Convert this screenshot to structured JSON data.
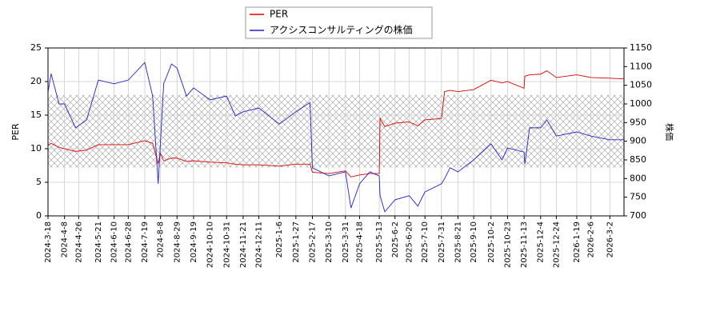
{
  "chart_data": {
    "type": "line",
    "x": [
      "2024-3-18",
      "2024-3-22",
      "2024-4-1",
      "2024-4-8",
      "2024-4-22",
      "2024-5-6",
      "2024-5-21",
      "2024-6-10",
      "2024-6-28",
      "2024-7-19",
      "2024-7-29",
      "2024-8-5",
      "2024-8-8",
      "2024-8-12",
      "2024-8-22",
      "2024-8-29",
      "2024-9-10",
      "2024-9-19",
      "2024-10-10",
      "2024-10-31",
      "2024-11-11",
      "2024-11-21",
      "2024-12-11",
      "2025-1-6",
      "2025-1-27",
      "2025-2-14",
      "2025-2-17",
      "2025-3-10",
      "2025-3-31",
      "2025-4-7",
      "2025-4-18",
      "2025-5-1",
      "2025-5-13",
      "2025-5-14",
      "2025-5-20",
      "2025-6-2",
      "2025-6-20",
      "2025-7-1",
      "2025-7-10",
      "2025-7-31",
      "2025-8-4",
      "2025-8-11",
      "2025-8-21",
      "2025-9-10",
      "2025-10-2",
      "2025-10-16",
      "2025-10-23",
      "2025-11-13",
      "2025-11-14",
      "2025-11-20",
      "2025-12-4",
      "2025-12-12",
      "2025-12-24",
      "2026-1-19",
      "2026-2-6",
      "2026-3-2",
      "2026-3-20"
    ],
    "series": [
      {
        "name": "PER",
        "color": "#dd0000",
        "axis": "y",
        "values": [
          10.5,
          10.8,
          10.2,
          10.0,
          9.6,
          9.8,
          10.6,
          10.6,
          10.6,
          11.2,
          10.8,
          7.8,
          9.3,
          8.2,
          8.6,
          8.6,
          8.1,
          8.2,
          8.0,
          7.9,
          7.7,
          7.6,
          7.6,
          7.4,
          7.7,
          7.7,
          6.5,
          6.3,
          6.7,
          5.8,
          6.1,
          6.3,
          6.3,
          14.5,
          13.3,
          13.8,
          14.0,
          13.4,
          14.3,
          14.5,
          18.5,
          18.7,
          18.5,
          18.8,
          20.2,
          19.8,
          20.0,
          19.0,
          20.8,
          21.0,
          21.1,
          21.6,
          20.6,
          21.0,
          20.6,
          20.5,
          20.4
        ]
      },
      {
        "name": "アクシスコンサルティングの株価",
        "color": "#2222cc",
        "axis": "y2",
        "values": [
          1032,
          1081,
          1000,
          1000,
          936,
          957,
          1064,
          1054,
          1064,
          1111,
          1021,
          786,
          900,
          1054,
          1107,
          1096,
          1021,
          1043,
          1011,
          1021,
          968,
          979,
          989,
          946,
          979,
          1004,
          829,
          807,
          818,
          721,
          786,
          818,
          807,
          754,
          711,
          743,
          754,
          726,
          764,
          786,
          800,
          829,
          818,
          850,
          893,
          850,
          882,
          871,
          839,
          936,
          936,
          957,
          914,
          925,
          914,
          904,
          904
        ]
      }
    ],
    "y_label": "PER",
    "y2_label": "株価",
    "xlim": [
      "2024-3-18",
      "2026-3-20"
    ],
    "xticks": [
      "2024-3-18",
      "2024-4-8",
      "2024-4-26",
      "2024-5-21",
      "2024-6-10",
      "2024-6-28",
      "2024-7-19",
      "2024-8-8",
      "2024-8-29",
      "2024-9-19",
      "2024-10-10",
      "2024-10-31",
      "2024-11-21",
      "2024-12-11",
      "2025-1-6",
      "2025-1-27",
      "2025-2-17",
      "2025-3-10",
      "2025-3-31",
      "2025-4-18",
      "2025-5-13",
      "2025-6-2",
      "2025-6-20",
      "2025-7-10",
      "2025-7-31",
      "2025-8-21",
      "2025-9-10",
      "2025-10-2",
      "2025-10-23",
      "2025-11-13",
      "2025-12-4",
      "2025-12-24",
      "2026-1-19",
      "2026-2-6",
      "2026-3-2"
    ],
    "ylim": [
      0,
      25
    ],
    "yticks": [
      0,
      5,
      10,
      15,
      20,
      25
    ],
    "y2lim": [
      700,
      1150
    ],
    "y2ticks": [
      700,
      750,
      800,
      850,
      900,
      950,
      1000,
      1050,
      1100,
      1150
    ],
    "band": [
      7.2,
      18
    ],
    "grid": true
  }
}
